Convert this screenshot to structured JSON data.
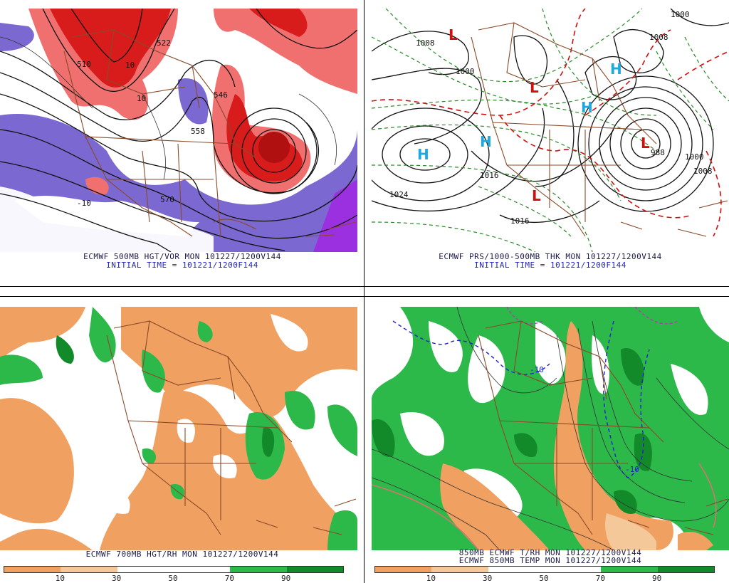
{
  "panels": {
    "top_left": {
      "caption_line1": "ECMWF 500MB HGT/VOR MON 101227/1200V144",
      "caption_line2": "INITIAL TIME = 101221/1200F144",
      "contour_labels": [
        "510",
        "522",
        "546",
        "558",
        "570",
        "10",
        "10",
        "-10"
      ]
    },
    "top_right": {
      "caption_line1": "ECMWF PRS/1000-500MB THK MON 101227/1200V144",
      "caption_line2": "INITIAL TIME = 101221/1200F144",
      "contour_labels": [
        "1008",
        "1000",
        "1024",
        "1016",
        "1016",
        "988",
        "1000",
        "1008",
        "1000",
        "1008"
      ],
      "pressure_centers": [
        {
          "symbol": "L",
          "kind": "low"
        },
        {
          "symbol": "L",
          "kind": "low"
        },
        {
          "symbol": "L",
          "kind": "low"
        },
        {
          "symbol": "L",
          "kind": "low"
        },
        {
          "symbol": "H",
          "kind": "high"
        },
        {
          "symbol": "H",
          "kind": "high"
        },
        {
          "symbol": "H",
          "kind": "high"
        },
        {
          "symbol": "H",
          "kind": "high"
        }
      ]
    },
    "bottom_left": {
      "caption_line1": "ECMWF 700MB HGT/RH MON 101227/1200V144",
      "scale_labels": [
        "10",
        "30",
        "50",
        "70",
        "90"
      ],
      "scale_colors": [
        "#f0a060",
        "#f5c89a",
        "#ffffff",
        "#ffffff",
        "#2db84a",
        "#138a2a"
      ]
    },
    "bottom_right": {
      "caption_line1": "850MB ECMWF T/RH MON 101227/1200V144",
      "caption_line2": "ECMWF 850MB TEMP MON 101227/1200V144",
      "contour_labels": [
        "-10",
        "-10"
      ],
      "scale_labels": [
        "10",
        "30",
        "50",
        "70",
        "90"
      ],
      "scale_colors": [
        "#f0a060",
        "#f5c89a",
        "#ffffff",
        "#ffffff",
        "#2db84a",
        "#138a2a"
      ]
    }
  },
  "colors": {
    "vorticity_high": "#d81c1c",
    "vorticity_mid": "#f07070",
    "vorticity_low": "#7b68d0",
    "rh_dry": "#f0a060",
    "rh_moist": "#2db84a",
    "rh_very_moist": "#138a2a",
    "borders": "#8a4a2a"
  }
}
